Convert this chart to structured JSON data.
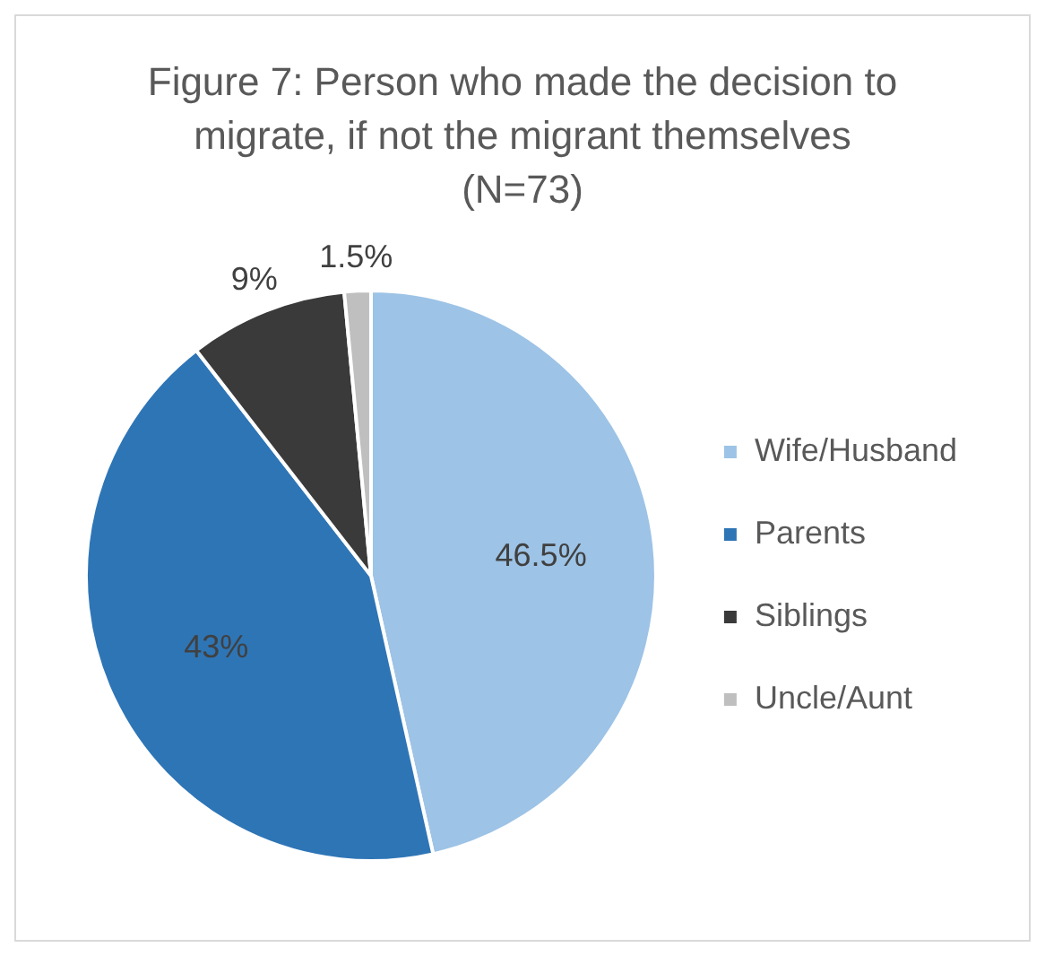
{
  "chart_data": {
    "type": "pie",
    "title": "Figure 7: Person who made the decision to migrate, if not the migrant themselves (N=73)",
    "categories": [
      "Wife/Husband",
      "Parents",
      "Siblings",
      "Uncle/Aunt"
    ],
    "values": [
      46.5,
      43,
      9,
      1.5
    ],
    "value_labels": [
      "46.5%",
      "43%",
      "9%",
      "1.5%"
    ],
    "colors": [
      "#9dc3e6",
      "#2e75b6",
      "#3a3a3a",
      "#bfbfbf"
    ],
    "legend": "right"
  }
}
